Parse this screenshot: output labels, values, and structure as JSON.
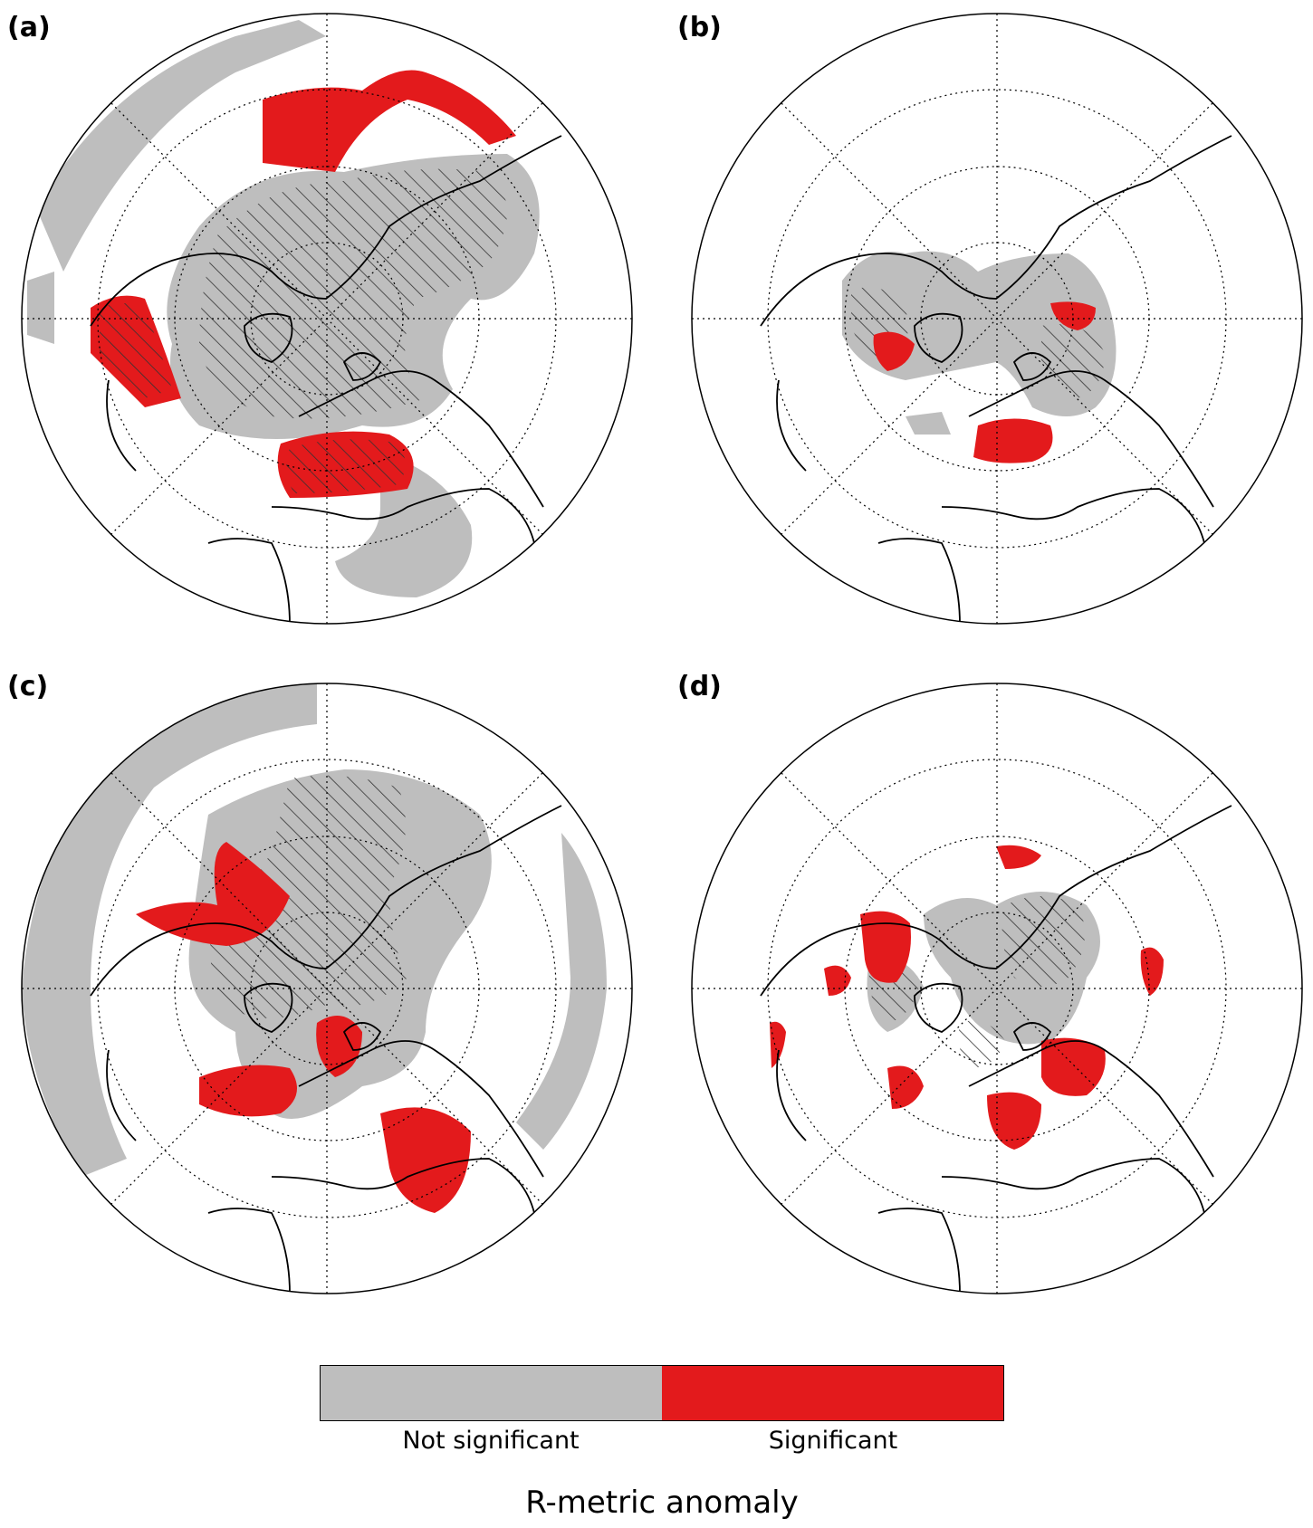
{
  "figure": {
    "panels": [
      {
        "label": "(a)"
      },
      {
        "label": "(b)"
      },
      {
        "label": "(c)"
      },
      {
        "label": "(d)"
      }
    ]
  },
  "colors": {
    "not_significant": "#bebebe",
    "significant": "#e31a1c",
    "hatch": "#333333",
    "coast": "#000000"
  },
  "legend": {
    "title": "R-metric anomaly",
    "categories": [
      "Not significant",
      "Significant"
    ]
  }
}
